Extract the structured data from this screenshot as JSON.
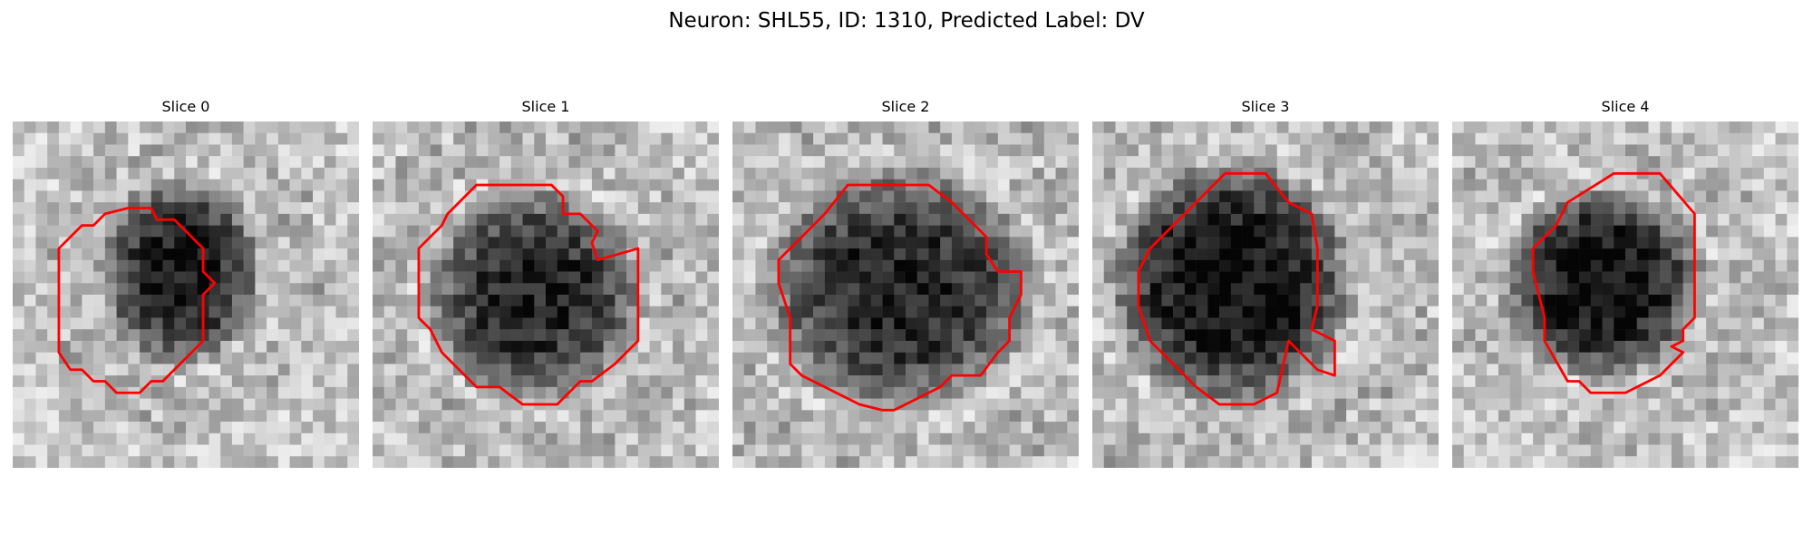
{
  "figure": {
    "title": "Neuron: SHL55, ID: 1310, Predicted Label: DV"
  },
  "colors": {
    "contour": "#ff0000"
  },
  "slices": [
    {
      "title": "Slice 0",
      "contour": [
        [
          10,
          7.5
        ],
        [
          12,
          7.5
        ],
        [
          12.5,
          8.5
        ],
        [
          14,
          8.5
        ],
        [
          16.5,
          11
        ],
        [
          16.5,
          13
        ],
        [
          17.5,
          14
        ],
        [
          16.5,
          15
        ],
        [
          16.5,
          19
        ],
        [
          13,
          22.5
        ],
        [
          12,
          22.5
        ],
        [
          11,
          23.5
        ],
        [
          9,
          23.5
        ],
        [
          8,
          22.5
        ],
        [
          7,
          22.5
        ],
        [
          6,
          21.5
        ],
        [
          5,
          21.5
        ],
        [
          4,
          20
        ],
        [
          4,
          11
        ],
        [
          6,
          9
        ],
        [
          7,
          9
        ],
        [
          8,
          8
        ]
      ],
      "dark": {
        "cx": 14.5,
        "cy": 13,
        "rx": 6,
        "ry": 7,
        "depth": 0.7
      }
    },
    {
      "title": "Slice 1",
      "contour": [
        [
          9,
          5.5
        ],
        [
          15.5,
          5.5
        ],
        [
          16.5,
          6.5
        ],
        [
          16.5,
          8
        ],
        [
          18,
          8
        ],
        [
          19.5,
          9.5
        ],
        [
          19,
          10.5
        ],
        [
          19.5,
          12
        ],
        [
          23,
          11
        ],
        [
          23,
          19
        ],
        [
          21,
          21
        ],
        [
          19,
          22.5
        ],
        [
          18,
          22.5
        ],
        [
          16,
          24.5
        ],
        [
          13,
          24.5
        ],
        [
          11,
          23
        ],
        [
          9,
          23
        ],
        [
          6,
          20
        ],
        [
          5,
          18
        ],
        [
          4,
          17
        ],
        [
          4,
          11
        ],
        [
          6,
          9
        ],
        [
          6.5,
          8
        ]
      ],
      "dark": {
        "cx": 14,
        "cy": 15,
        "rx": 8,
        "ry": 8,
        "depth": 0.65
      }
    },
    {
      "title": "Slice 2",
      "contour": [
        [
          10,
          5.5
        ],
        [
          17,
          5.5
        ],
        [
          19,
          7
        ],
        [
          22,
          10
        ],
        [
          22,
          11.5
        ],
        [
          23,
          13
        ],
        [
          25,
          13
        ],
        [
          25,
          15
        ],
        [
          24,
          17
        ],
        [
          24,
          19
        ],
        [
          23,
          20
        ],
        [
          21.5,
          22
        ],
        [
          19,
          22
        ],
        [
          18,
          23
        ],
        [
          16,
          24
        ],
        [
          14,
          25
        ],
        [
          13,
          25
        ],
        [
          11,
          24.5
        ],
        [
          8,
          23
        ],
        [
          6,
          22
        ],
        [
          5,
          21
        ],
        [
          5,
          17
        ],
        [
          4,
          14
        ],
        [
          4,
          12
        ],
        [
          6,
          10
        ],
        [
          8,
          8
        ]
      ],
      "dark": {
        "cx": 14.5,
        "cy": 14.5,
        "rx": 10,
        "ry": 9,
        "depth": 0.65
      }
    },
    {
      "title": "Slice 3",
      "contour": [
        [
          11.5,
          4.5
        ],
        [
          15,
          4.5
        ],
        [
          17,
          7
        ],
        [
          19,
          8
        ],
        [
          19.5,
          11
        ],
        [
          19.5,
          14
        ],
        [
          19.5,
          16
        ],
        [
          19,
          18
        ],
        [
          21,
          19
        ],
        [
          21,
          22
        ],
        [
          19.5,
          21.5
        ],
        [
          18,
          20
        ],
        [
          17,
          19
        ],
        [
          16,
          23.5
        ],
        [
          14,
          24.5
        ],
        [
          11,
          24.5
        ],
        [
          9,
          23
        ],
        [
          7,
          21
        ],
        [
          5,
          19
        ],
        [
          4,
          16
        ],
        [
          4,
          13
        ],
        [
          5,
          11
        ],
        [
          7,
          9
        ],
        [
          8,
          8
        ],
        [
          10,
          6
        ]
      ],
      "dark": {
        "cx": 12,
        "cy": 14,
        "rx": 9,
        "ry": 9,
        "depth": 0.75
      }
    },
    {
      "title": "Slice 4",
      "contour": [
        [
          14,
          4.5
        ],
        [
          18,
          4.5
        ],
        [
          21,
          8
        ],
        [
          21,
          17
        ],
        [
          20,
          18
        ],
        [
          20,
          19
        ],
        [
          19,
          19.5
        ],
        [
          20,
          20
        ],
        [
          19,
          21
        ],
        [
          18,
          22
        ],
        [
          17,
          22.5
        ],
        [
          15,
          23.5
        ],
        [
          12,
          23.5
        ],
        [
          11,
          22.5
        ],
        [
          10,
          22.5
        ],
        [
          8,
          19
        ],
        [
          8,
          17
        ],
        [
          7,
          13
        ],
        [
          7,
          11
        ],
        [
          9,
          9
        ],
        [
          10,
          7
        ]
      ],
      "dark": {
        "cx": 13,
        "cy": 14,
        "rx": 7.5,
        "ry": 7,
        "depth": 0.75
      }
    }
  ]
}
